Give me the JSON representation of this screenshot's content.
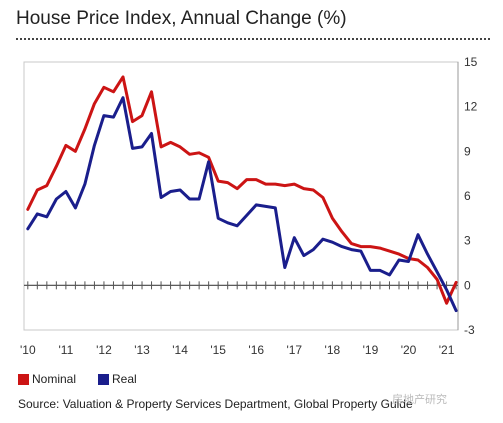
{
  "chart_data": {
    "type": "line",
    "title": "House Price Index, Annual Change (%)",
    "xlabel": "",
    "ylabel": "",
    "ylim": [
      -3,
      15
    ],
    "xlim": [
      2009.9,
      2021.3
    ],
    "yticks": [
      15,
      12,
      9,
      6,
      3,
      0,
      -3
    ],
    "xticks": [
      {
        "label": "'10",
        "value": 2010
      },
      {
        "label": "'11",
        "value": 2011
      },
      {
        "label": "'12",
        "value": 2012
      },
      {
        "label": "'13",
        "value": 2013
      },
      {
        "label": "'14",
        "value": 2014
      },
      {
        "label": "'15",
        "value": 2015
      },
      {
        "label": "'16",
        "value": 2016
      },
      {
        "label": "'17",
        "value": 2017
      },
      {
        "label": "'18",
        "value": 2018
      },
      {
        "label": "'19",
        "value": 2019
      },
      {
        "label": "'20",
        "value": 2020
      },
      {
        "label": "'21",
        "value": 2021
      }
    ],
    "legend_position": "bottom-left",
    "series": [
      {
        "name": "Nominal",
        "color": "#cc1414",
        "x": [
          2010.0,
          2010.25,
          2010.5,
          2010.75,
          2011.0,
          2011.25,
          2011.5,
          2011.75,
          2012.0,
          2012.25,
          2012.5,
          2012.75,
          2013.0,
          2013.25,
          2013.5,
          2013.75,
          2014.0,
          2014.25,
          2014.5,
          2014.75,
          2015.0,
          2015.25,
          2015.5,
          2015.75,
          2016.0,
          2016.25,
          2016.5,
          2016.75,
          2017.0,
          2017.25,
          2017.5,
          2017.75,
          2018.0,
          2018.25,
          2018.5,
          2018.75,
          2019.0,
          2019.25,
          2019.5,
          2019.75,
          2020.0,
          2020.25,
          2020.5,
          2020.75,
          2021.0,
          2021.25
        ],
        "values": [
          5.1,
          6.4,
          6.7,
          8.0,
          9.4,
          9.0,
          10.5,
          12.2,
          13.3,
          13.0,
          14.0,
          11.0,
          11.4,
          13.0,
          9.3,
          9.6,
          9.3,
          8.8,
          8.9,
          8.6,
          7.0,
          6.9,
          6.5,
          7.1,
          7.1,
          6.8,
          6.8,
          6.7,
          6.8,
          6.5,
          6.4,
          5.9,
          4.5,
          3.6,
          2.8,
          2.6,
          2.6,
          2.5,
          2.3,
          2.1,
          1.8,
          1.7,
          1.2,
          0.4,
          -1.2,
          0.2
        ]
      },
      {
        "name": "Real",
        "color": "#1a1e8c",
        "x": [
          2010.0,
          2010.25,
          2010.5,
          2010.75,
          2011.0,
          2011.25,
          2011.5,
          2011.75,
          2012.0,
          2012.25,
          2012.5,
          2012.75,
          2013.0,
          2013.25,
          2013.5,
          2013.75,
          2014.0,
          2014.25,
          2014.5,
          2014.75,
          2015.0,
          2015.25,
          2015.5,
          2015.75,
          2016.0,
          2016.25,
          2016.5,
          2016.75,
          2017.0,
          2017.25,
          2017.5,
          2017.75,
          2018.0,
          2018.25,
          2018.5,
          2018.75,
          2019.0,
          2019.25,
          2019.5,
          2019.75,
          2020.0,
          2020.25,
          2020.5,
          2020.75,
          2021.0,
          2021.25
        ],
        "values": [
          3.8,
          4.8,
          4.6,
          5.8,
          6.3,
          5.2,
          6.8,
          9.4,
          11.4,
          11.3,
          12.6,
          9.2,
          9.3,
          10.2,
          5.9,
          6.3,
          6.4,
          5.8,
          5.8,
          8.3,
          4.5,
          4.2,
          4.0,
          4.7,
          5.4,
          5.3,
          5.2,
          1.2,
          3.2,
          2.0,
          2.4,
          3.1,
          2.9,
          2.6,
          2.4,
          2.3,
          1.0,
          1.0,
          0.7,
          1.7,
          1.6,
          3.4,
          2.1,
          0.9,
          -0.3,
          -1.7
        ]
      }
    ],
    "source": "Source: Valuation & Property Services Department, Global Property Guide"
  },
  "watermark": "房地产研究"
}
